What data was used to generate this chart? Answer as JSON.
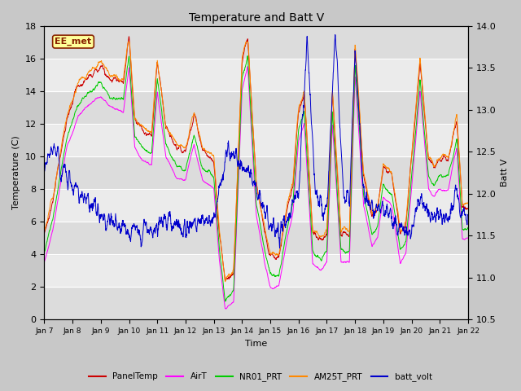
{
  "title": "Temperature and Batt V",
  "xlabel": "Time",
  "ylabel_left": "Temperature (C)",
  "ylabel_right": "Batt V",
  "ylim_left": [
    0,
    18
  ],
  "ylim_right": [
    10.5,
    14.0
  ],
  "yticks_left": [
    0,
    2,
    4,
    6,
    8,
    10,
    12,
    14,
    16,
    18
  ],
  "yticks_right": [
    10.5,
    11.0,
    11.5,
    12.0,
    12.5,
    13.0,
    13.5,
    14.0
  ],
  "xtick_labels": [
    "Jan 7",
    "Jan 8",
    "Jan 9",
    "Jan 10",
    "Jan 11",
    "Jan 12",
    "Jan 13",
    "Jan 14",
    "Jan 15",
    "Jan 16",
    "Jan 17",
    "Jan 18",
    "Jan 19",
    "Jan 20",
    "Jan 21",
    "Jan 22"
  ],
  "colors": {
    "PanelTemp": "#cc0000",
    "AirT": "#ff00ff",
    "NR01_PRT": "#00cc00",
    "AM25T_PRT": "#ff8800",
    "batt_volt": "#0000cc"
  },
  "annotation_text": "EE_met",
  "annotation_box_color": "#ffff99",
  "annotation_box_edge": "#882200",
  "band_colors": [
    "#dcdcdc",
    "#ebebeb"
  ],
  "grid_line_color": "#ffffff",
  "fig_bg_color": "#c8c8c8",
  "n_points": 2160,
  "seed": 77,
  "linewidth": 0.7
}
